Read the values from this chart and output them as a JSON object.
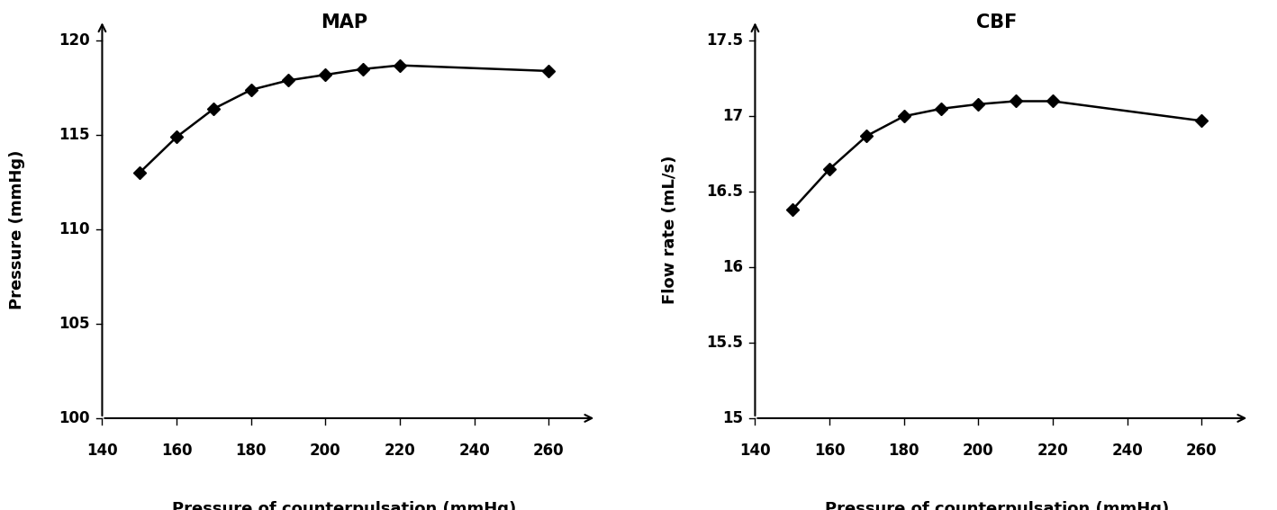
{
  "map_x": [
    150,
    160,
    170,
    180,
    190,
    200,
    210,
    220,
    260
  ],
  "map_y": [
    113.0,
    114.9,
    116.4,
    117.4,
    117.9,
    118.2,
    118.5,
    118.7,
    118.4
  ],
  "cbf_x": [
    150,
    160,
    170,
    180,
    190,
    200,
    210,
    220,
    260
  ],
  "cbf_y": [
    16.38,
    16.65,
    16.87,
    17.0,
    17.05,
    17.08,
    17.1,
    17.1,
    16.97
  ],
  "map_title": "MAP",
  "cbf_title": "CBF",
  "map_ylabel": "Pressure (mmHg)",
  "cbf_ylabel": "Flow rate (mL/s)",
  "xlabel": "Pressure of counterpulsation (mmHg)",
  "map_ylim": [
    100,
    120
  ],
  "map_yticks": [
    100,
    105,
    110,
    115,
    120
  ],
  "cbf_ylim": [
    15,
    17.5
  ],
  "cbf_yticks": [
    15,
    15.5,
    16,
    16.5,
    17,
    17.5
  ],
  "xlim": [
    140,
    270
  ],
  "xticks": [
    140,
    160,
    180,
    200,
    220,
    240,
    260
  ],
  "xtick_labels": [
    "140",
    "160",
    "180",
    "200",
    "220",
    "240",
    "260"
  ],
  "line_color": "#000000",
  "marker": "D",
  "markersize": 7,
  "linewidth": 1.8,
  "tick_fontsize": 12,
  "label_fontsize": 13,
  "title_fontsize": 15
}
